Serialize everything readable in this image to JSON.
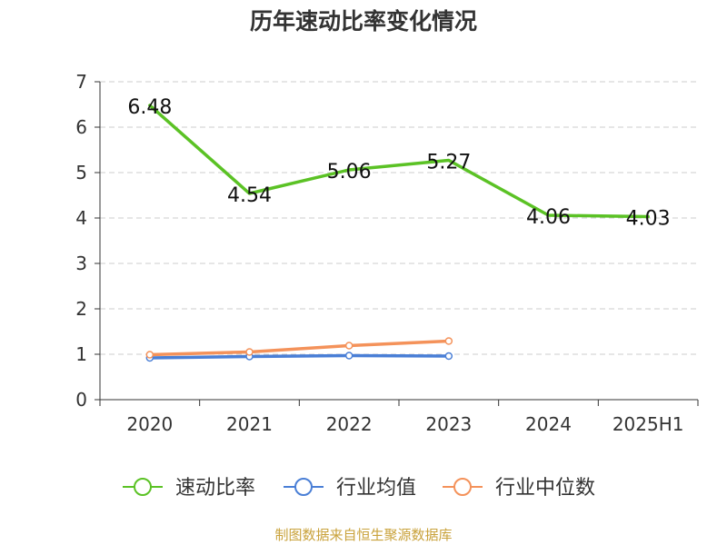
{
  "chart_data": {
    "type": "line",
    "title": "历年速动比率变化情况",
    "categories": [
      "2020",
      "2021",
      "2022",
      "2023",
      "2024",
      "2025H1"
    ],
    "y_ticks": [
      "0",
      "1",
      "2",
      "3",
      "4",
      "5",
      "6",
      "7"
    ],
    "ylim": [
      0,
      7
    ],
    "grid": true,
    "legend_position": "bottom",
    "series": [
      {
        "name": "速动比率",
        "color": "#5bc225",
        "values": [
          6.48,
          4.54,
          5.06,
          5.27,
          4.06,
          4.03
        ],
        "labels": [
          "6.48",
          "4.54",
          "5.06",
          "5.27",
          "4.06",
          "4.03"
        ]
      },
      {
        "name": "行业均值",
        "color": "#4a7fd6",
        "values": [
          0.92,
          0.95,
          0.97,
          0.96,
          null,
          null
        ]
      },
      {
        "name": "行业中位数",
        "color": "#f4925a",
        "values": [
          0.99,
          1.05,
          1.19,
          1.29,
          null,
          null
        ]
      }
    ]
  },
  "source_note": "制图数据来自恒生聚源数据库"
}
